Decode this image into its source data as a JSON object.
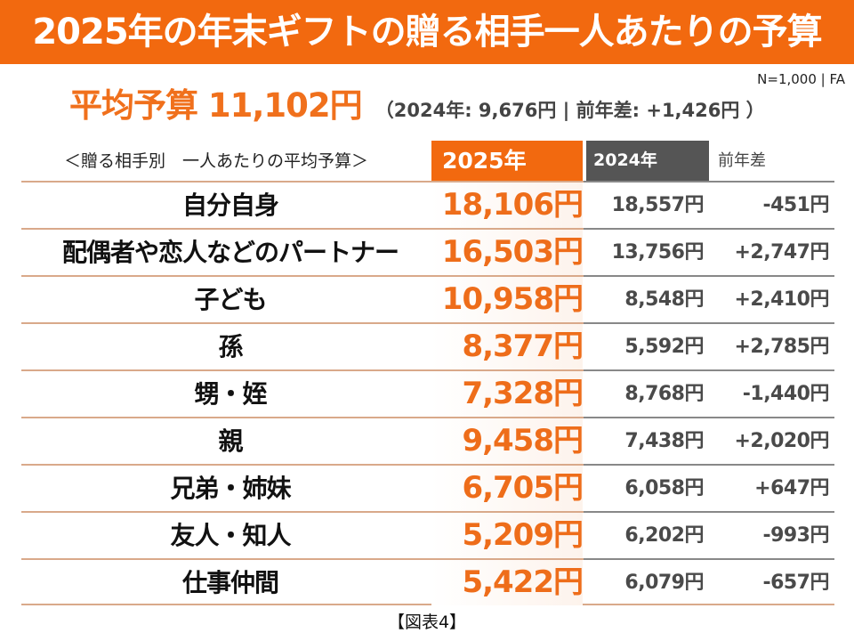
{
  "title": "2025年の年末ギフトの贈る相手一人あたりの予算",
  "source_note": "N=1,000 | FA",
  "average": {
    "main": "平均予算 11,102円",
    "sub": "（2024年: 9,676円 | 前年差: +1,426円 ）"
  },
  "table": {
    "subtitle": "＜贈る相手別　一人あたりの平均予算＞",
    "headers": {
      "y2025": "2025年",
      "y2024": "2024年",
      "diff": "前年差"
    },
    "rows": [
      {
        "label": "自分自身",
        "y2025": "18,106円",
        "y2024": "18,557円",
        "diff": "-451円"
      },
      {
        "label": "配偶者や恋人などのパートナー",
        "y2025": "16,503円",
        "y2024": "13,756円",
        "diff": "+2,747円"
      },
      {
        "label": "子ども",
        "y2025": "10,958円",
        "y2024": "8,548円",
        "diff": "+2,410円"
      },
      {
        "label": "孫",
        "y2025": "8,377円",
        "y2024": "5,592円",
        "diff": "+2,785円"
      },
      {
        "label": "甥・姪",
        "y2025": "7,328円",
        "y2024": "8,768円",
        "diff": "-1,440円"
      },
      {
        "label": "親",
        "y2025": "9,458円",
        "y2024": "7,438円",
        "diff": "+2,020円"
      },
      {
        "label": "兄弟・姉妹",
        "y2025": "6,705円",
        "y2024": "6,058円",
        "diff": "+647円"
      },
      {
        "label": "友人・知人",
        "y2025": "5,209円",
        "y2024": "6,202円",
        "diff": "-993円"
      },
      {
        "label": "仕事仲間",
        "y2025": "5,422円",
        "y2024": "6,079円",
        "diff": "-657円"
      }
    ]
  },
  "caption": "【図表4】",
  "colors": {
    "accent": "#f2690f",
    "header_2024": "#555555",
    "value_2025": "#ee6d1a",
    "value_other": "#4a4a4a"
  },
  "chart_data": {
    "type": "table",
    "title": "2025年の年末ギフトの贈る相手一人あたりの予算",
    "subtitle": "＜贈る相手別　一人あたりの平均予算＞",
    "unit": "円",
    "summary": {
      "average_2025": 11102,
      "average_2024": 9676,
      "diff": 1426
    },
    "columns": [
      "贈る相手",
      "2025年",
      "2024年",
      "前年差"
    ],
    "categories": [
      "自分自身",
      "配偶者や恋人などのパートナー",
      "子ども",
      "孫",
      "甥・姪",
      "親",
      "兄弟・姉妹",
      "友人・知人",
      "仕事仲間"
    ],
    "series": [
      {
        "name": "2025年",
        "values": [
          18106,
          16503,
          10958,
          8377,
          7328,
          9458,
          6705,
          5209,
          5422
        ]
      },
      {
        "name": "2024年",
        "values": [
          18557,
          13756,
          8548,
          5592,
          8768,
          7438,
          6058,
          6202,
          6079
        ]
      },
      {
        "name": "前年差",
        "values": [
          -451,
          2747,
          2410,
          2785,
          -1440,
          2020,
          647,
          -993,
          -657
        ]
      }
    ],
    "notes": "N=1,000 | FA",
    "caption": "【図表4】"
  }
}
